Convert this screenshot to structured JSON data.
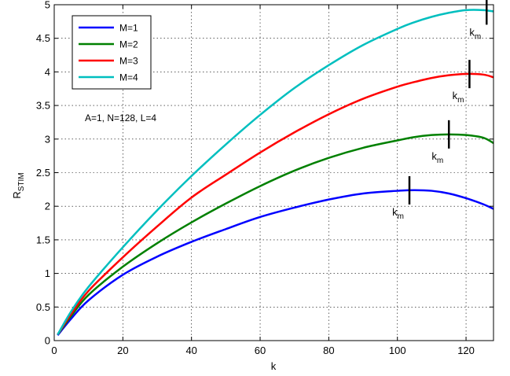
{
  "chart_data": {
    "type": "line",
    "xlabel": "k",
    "ylabel": "R",
    "ylabel_sub": "STIM",
    "xlim": [
      0,
      128
    ],
    "ylim": [
      0,
      5
    ],
    "xticks": [
      0,
      20,
      40,
      60,
      80,
      100,
      120
    ],
    "yticks": [
      0,
      0.5,
      1,
      1.5,
      2,
      2.5,
      3,
      3.5,
      4,
      4.5,
      5
    ],
    "grid": true,
    "legend_position": "top-left",
    "annotation": "A=1, N=128, L=4",
    "marker_label": "k",
    "marker_sub": "m",
    "x": [
      1,
      5,
      10,
      20,
      30,
      40,
      50,
      60,
      70,
      80,
      90,
      100,
      105,
      110,
      115,
      120,
      125,
      128
    ],
    "series": [
      {
        "name": "M=1",
        "color": "#0000ff",
        "values": [
          0.08,
          0.33,
          0.6,
          0.98,
          1.25,
          1.47,
          1.66,
          1.84,
          1.98,
          2.1,
          2.19,
          2.23,
          2.24,
          2.23,
          2.19,
          2.12,
          2.03,
          1.96
        ],
        "km": 103.5
      },
      {
        "name": "M=2",
        "color": "#008000",
        "values": [
          0.09,
          0.37,
          0.68,
          1.1,
          1.45,
          1.76,
          2.04,
          2.3,
          2.53,
          2.72,
          2.87,
          2.98,
          3.03,
          3.06,
          3.07,
          3.06,
          3.02,
          2.94
        ],
        "km": 115
      },
      {
        "name": "M=3",
        "color": "#ff0000",
        "values": [
          0.09,
          0.4,
          0.74,
          1.24,
          1.7,
          2.13,
          2.47,
          2.8,
          3.1,
          3.37,
          3.6,
          3.78,
          3.85,
          3.91,
          3.95,
          3.97,
          3.96,
          3.92
        ],
        "km": 121
      },
      {
        "name": "M=4",
        "color": "#00bfbf",
        "values": [
          0.09,
          0.44,
          0.8,
          1.39,
          1.94,
          2.45,
          2.92,
          3.36,
          3.76,
          4.1,
          4.4,
          4.64,
          4.74,
          4.82,
          4.88,
          4.92,
          4.92,
          4.9
        ],
        "km": 126
      }
    ]
  }
}
